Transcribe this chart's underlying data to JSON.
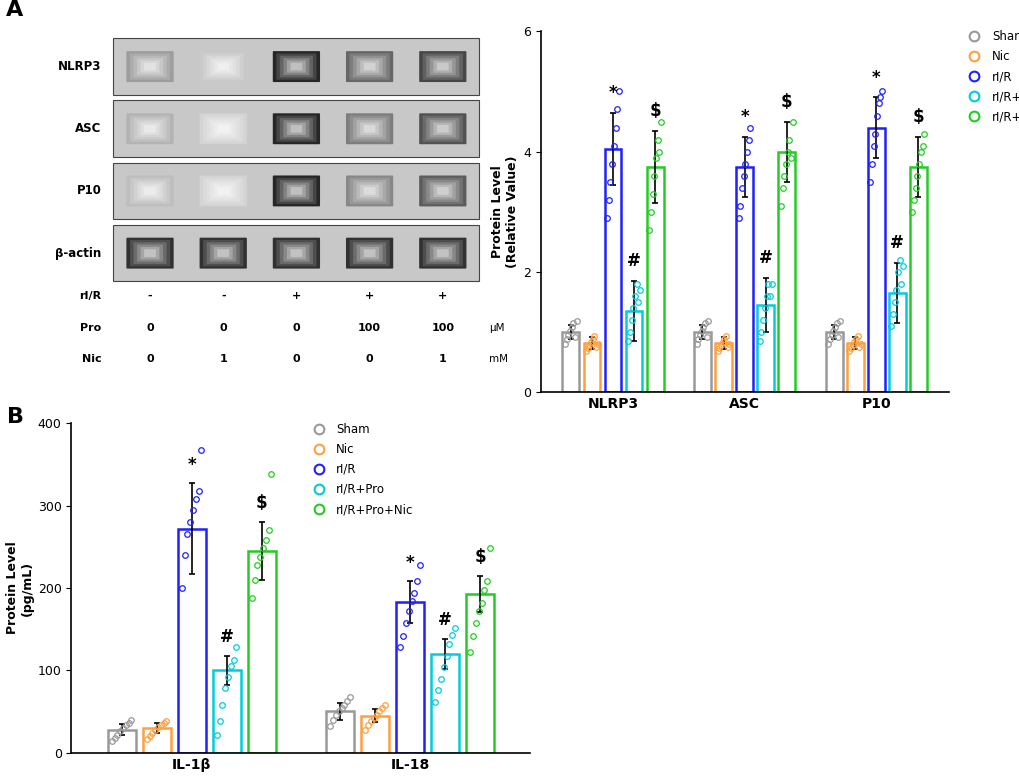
{
  "panel_A_label": "A",
  "panel_B_label": "B",
  "western_blot": {
    "bands": [
      "NLRP3",
      "ASC",
      "P10",
      "β-actin"
    ],
    "lanes": 5,
    "lane_labels": {
      "rI/R": [
        "-",
        "-",
        "+",
        "+",
        "+"
      ],
      "Pro": [
        "0",
        "0",
        "0",
        "100",
        "100"
      ],
      "Nic": [
        "0",
        "1",
        "0",
        "0",
        "1"
      ],
      "Pro_unit": "μM",
      "Nic_unit": "mM"
    },
    "intensities": {
      "NLRP3": [
        0.45,
        0.25,
        1.0,
        0.7,
        0.85
      ],
      "ASC": [
        0.35,
        0.2,
        1.0,
        0.6,
        0.8
      ],
      "P10": [
        0.3,
        0.2,
        1.0,
        0.55,
        0.75
      ],
      "β-actin": [
        0.95,
        0.95,
        0.95,
        0.95,
        0.95
      ]
    }
  },
  "bar_chart_A": {
    "groups": [
      "NLRP3",
      "ASC",
      "P10"
    ],
    "conditions": [
      "Sham",
      "Nic",
      "rI/R",
      "rI/R+Pro",
      "rI/R+Pro+Nic"
    ],
    "colors": [
      "#999999",
      "#FFA040",
      "#2020FF",
      "#00CCDD",
      "#22CC22"
    ],
    "bar_means": {
      "NLRP3": [
        1.0,
        0.82,
        4.05,
        1.35,
        3.75
      ],
      "ASC": [
        1.0,
        0.82,
        3.75,
        1.45,
        4.0
      ],
      "P10": [
        1.0,
        0.82,
        4.4,
        1.65,
        3.75
      ]
    },
    "bar_errors": {
      "NLRP3": [
        0.12,
        0.1,
        0.6,
        0.5,
        0.6
      ],
      "ASC": [
        0.12,
        0.1,
        0.5,
        0.45,
        0.5
      ],
      "P10": [
        0.12,
        0.1,
        0.5,
        0.5,
        0.5
      ]
    },
    "scatter_data": {
      "NLRP3": {
        "Sham": [
          0.8,
          0.88,
          0.95,
          1.02,
          1.08,
          1.15,
          0.92,
          1.18
        ],
        "Nic": [
          0.68,
          0.73,
          0.78,
          0.83,
          0.88,
          0.93,
          0.75,
          0.8
        ],
        "rI/R": [
          2.9,
          3.2,
          3.5,
          3.8,
          4.1,
          4.4,
          4.7,
          5.0
        ],
        "rI/R+Pro": [
          0.85,
          1.0,
          1.2,
          1.4,
          1.6,
          1.8,
          1.5,
          1.7
        ],
        "rI/R+Pro+Nic": [
          2.7,
          3.0,
          3.3,
          3.6,
          3.9,
          4.2,
          4.0,
          4.5
        ]
      },
      "ASC": {
        "Sham": [
          0.8,
          0.88,
          0.95,
          1.02,
          1.08,
          1.15,
          0.92,
          1.18
        ],
        "Nic": [
          0.68,
          0.73,
          0.78,
          0.83,
          0.88,
          0.93,
          0.75,
          0.8
        ],
        "rI/R": [
          2.9,
          3.1,
          3.4,
          3.6,
          3.8,
          4.0,
          4.2,
          4.4
        ],
        "rI/R+Pro": [
          0.85,
          1.0,
          1.2,
          1.4,
          1.6,
          1.8,
          1.6,
          1.8
        ],
        "rI/R+Pro+Nic": [
          3.1,
          3.4,
          3.6,
          3.8,
          4.0,
          4.2,
          3.9,
          4.5
        ]
      },
      "P10": {
        "Sham": [
          0.8,
          0.88,
          0.95,
          1.02,
          1.08,
          1.15,
          0.92,
          1.18
        ],
        "Nic": [
          0.68,
          0.73,
          0.78,
          0.83,
          0.88,
          0.93,
          0.75,
          0.8
        ],
        "rI/R": [
          3.5,
          3.8,
          4.1,
          4.3,
          4.6,
          4.8,
          4.9,
          5.0
        ],
        "rI/R+Pro": [
          1.1,
          1.3,
          1.5,
          1.7,
          2.0,
          2.2,
          1.8,
          2.1
        ],
        "rI/R+Pro+Nic": [
          3.0,
          3.2,
          3.4,
          3.6,
          3.8,
          4.0,
          4.1,
          4.3
        ]
      }
    },
    "ylabel": "Protein Level\n(Relative Value)",
    "ylim": [
      0,
      6
    ],
    "yticks": [
      0,
      2,
      4,
      6
    ],
    "sig_rIR": [
      4.65,
      4.25,
      4.9
    ],
    "sig_pro": [
      1.85,
      1.9,
      2.15
    ],
    "sig_proNic": [
      4.35,
      4.5,
      4.25
    ]
  },
  "bar_chart_B": {
    "groups": [
      "IL-1β",
      "IL-18"
    ],
    "conditions": [
      "Sham",
      "Nic",
      "rI/R",
      "rI/R+Pro",
      "rI/R+Pro+Nic"
    ],
    "colors": [
      "#999999",
      "#FFA040",
      "#2020FF",
      "#00CCDD",
      "#22CC22"
    ],
    "bar_means": {
      "IL-1β": [
        28.0,
        30.0,
        272.0,
        100.0,
        245.0
      ],
      "IL-18": [
        50.0,
        45.0,
        183.0,
        120.0,
        193.0
      ]
    },
    "bar_errors": {
      "IL-1β": [
        7.0,
        6.0,
        55.0,
        18.0,
        35.0
      ],
      "IL-18": [
        10.0,
        8.0,
        25.0,
        18.0,
        22.0
      ]
    },
    "scatter_data": {
      "IL-1β": {
        "Sham": [
          14,
          18,
          22,
          26,
          30,
          34,
          36,
          40
        ],
        "Nic": [
          16,
          20,
          24,
          28,
          31,
          34,
          36,
          38
        ],
        "rI/R": [
          200,
          240,
          265,
          280,
          295,
          308,
          318,
          368
        ],
        "rI/R+Pro": [
          22,
          38,
          58,
          78,
          92,
          105,
          112,
          128
        ],
        "rI/R+Pro+Nic": [
          188,
          210,
          228,
          238,
          248,
          258,
          270,
          338
        ]
      },
      "IL-18": {
        "Sham": [
          32,
          40,
          46,
          50,
          54,
          58,
          63,
          68
        ],
        "Nic": [
          28,
          34,
          38,
          42,
          46,
          50,
          54,
          58
        ],
        "rI/R": [
          128,
          142,
          158,
          172,
          184,
          194,
          208,
          228
        ],
        "rI/R+Pro": [
          62,
          76,
          90,
          104,
          118,
          132,
          143,
          152
        ],
        "rI/R+Pro+Nic": [
          122,
          142,
          158,
          172,
          182,
          198,
          208,
          248
        ]
      }
    },
    "ylabel": "Protein Level\n(pg/mL)",
    "ylim": [
      0,
      400
    ],
    "yticks": [
      0,
      100,
      200,
      300,
      400
    ],
    "sig_rIR": [
      327,
      208
    ],
    "sig_pro": [
      118,
      138
    ],
    "sig_proNic": [
      280,
      215
    ]
  },
  "legend_labels": [
    "Sham",
    "Nic",
    "rI/R",
    "rI/R+Pro",
    "rI/R+Pro+Nic"
  ],
  "legend_colors": [
    "#999999",
    "#FFA040",
    "#2020FF",
    "#00CCDD",
    "#22CC22"
  ]
}
